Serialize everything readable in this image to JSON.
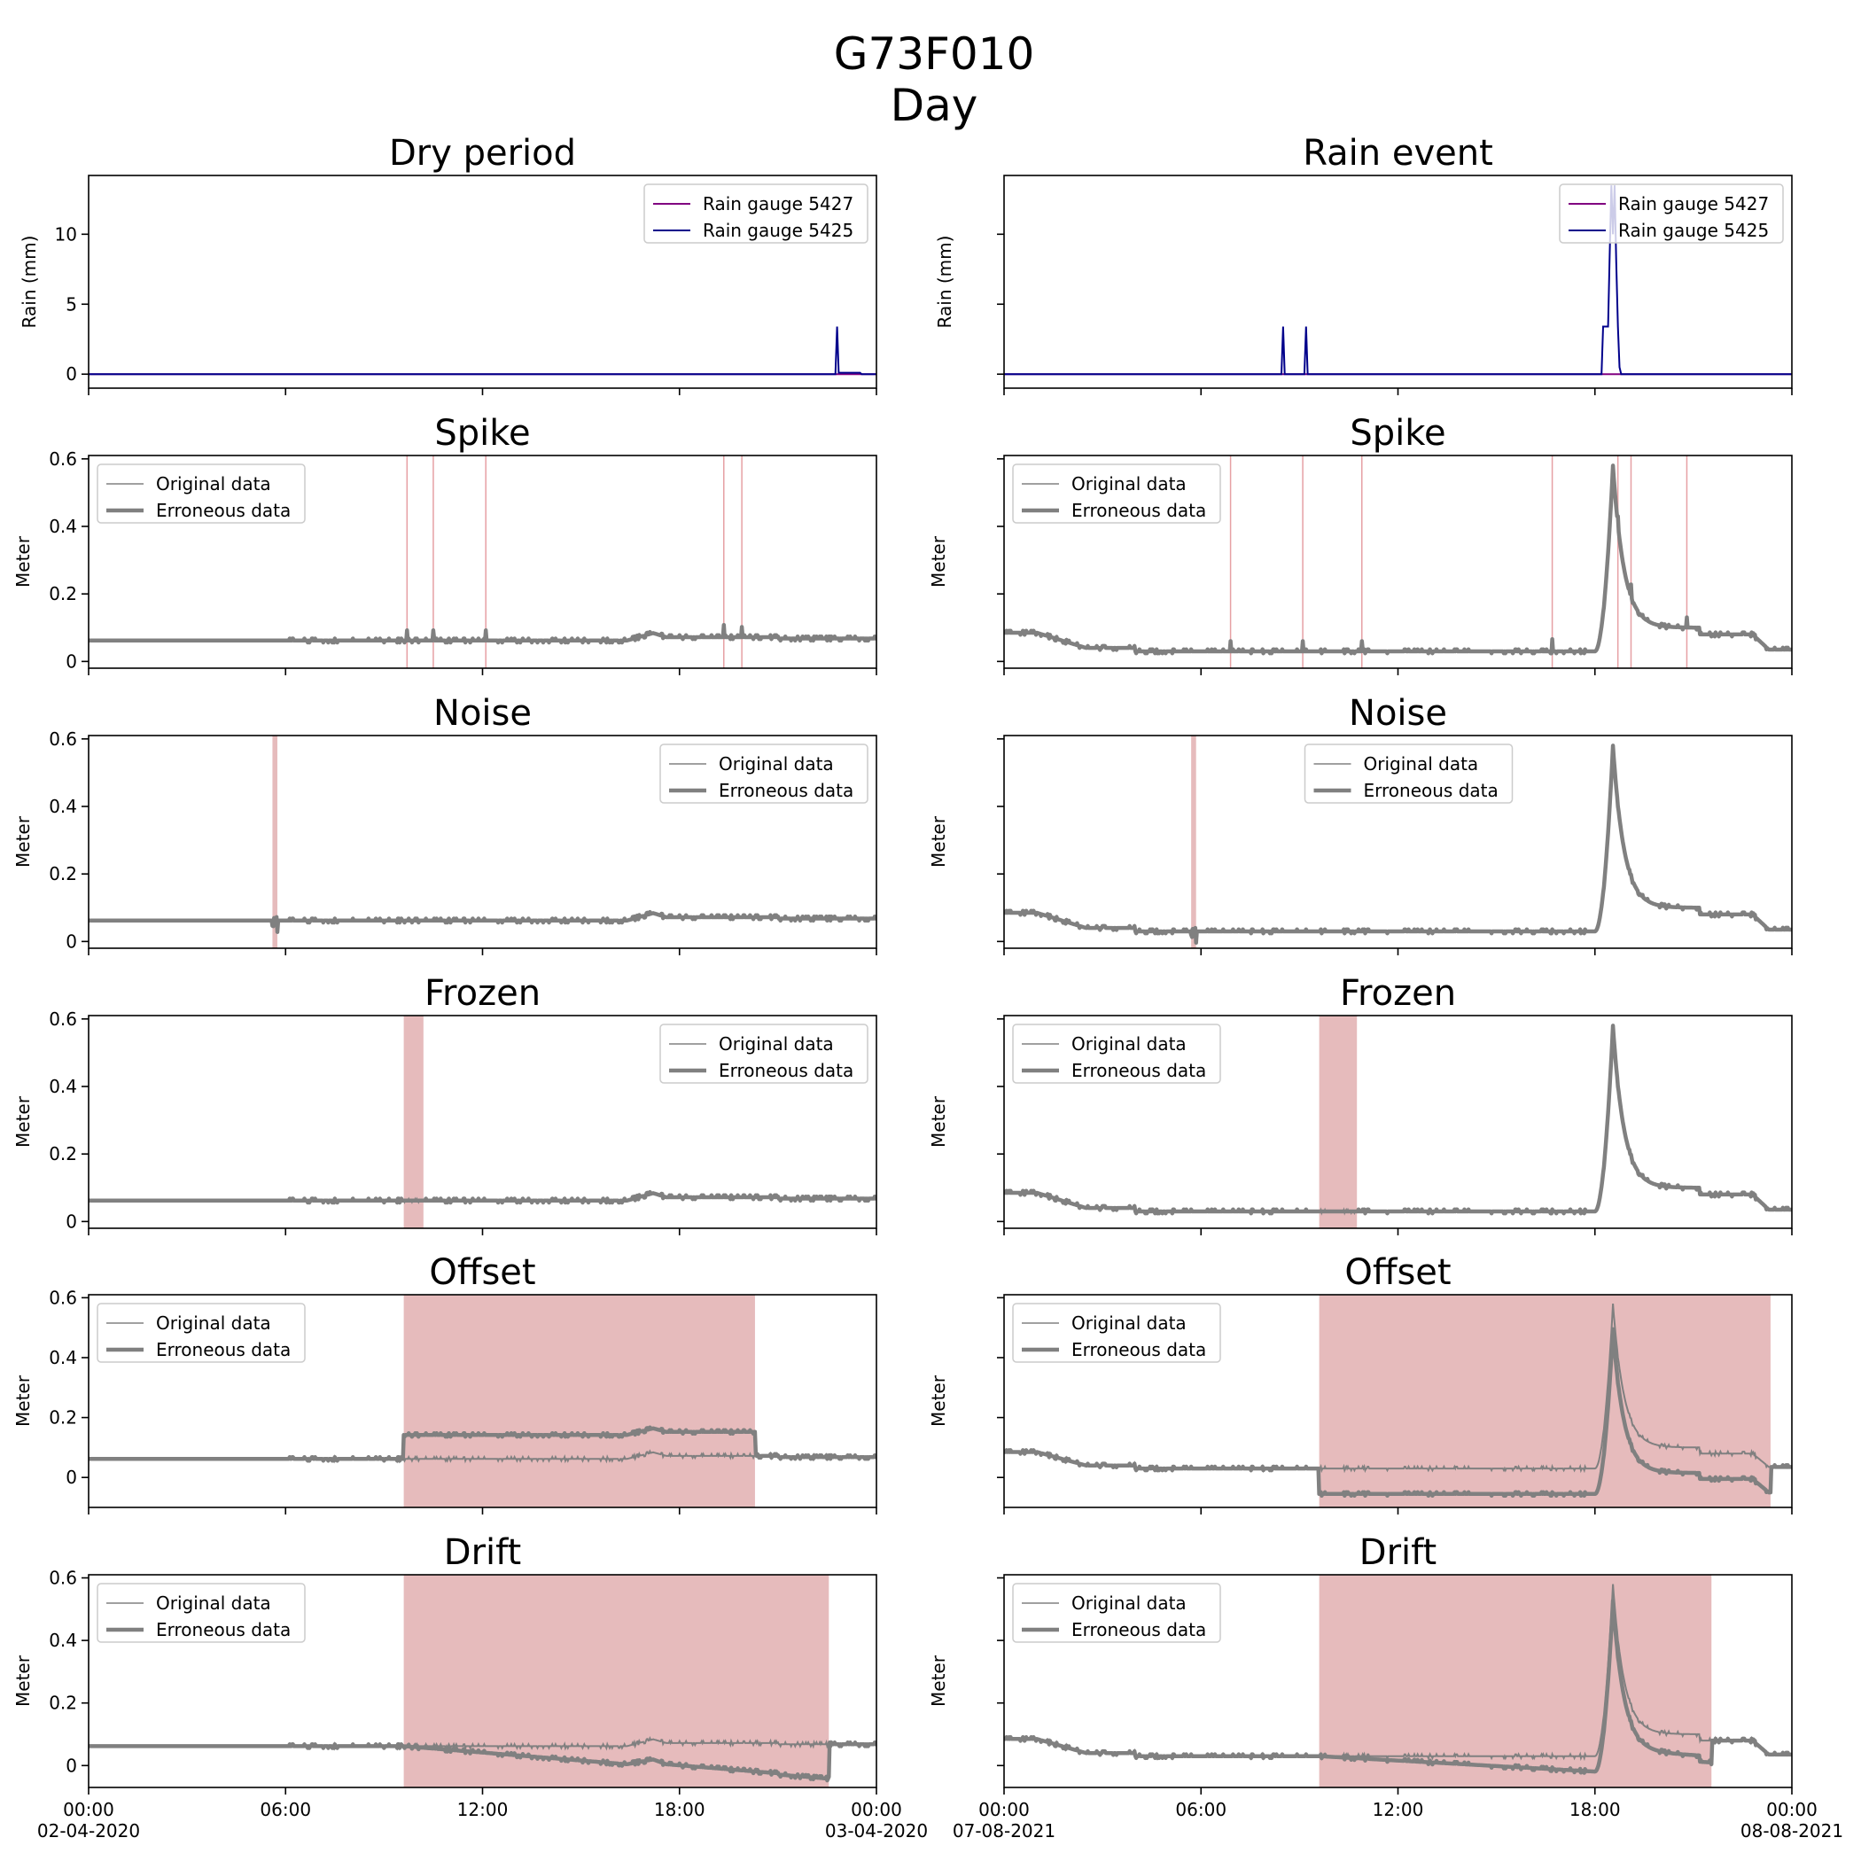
{
  "figure": {
    "title_line1": "G73F010",
    "title_line2": "Day"
  },
  "columns": [
    {
      "title": "Dry period",
      "start_label": "02-04-2020",
      "end_label": "03-04-2020",
      "baseline": "dry"
    },
    {
      "title": "Rain event",
      "start_label": "07-08-2021",
      "end_label": "08-08-2021",
      "baseline": "rain"
    }
  ],
  "colors": {
    "data": "#808080",
    "highlight": "#e6bbbc",
    "highlight_line": "#e6a0a4",
    "gauge_5427": "#800080",
    "gauge_5425": "#00008b"
  },
  "chart_data": [
    {
      "type": "line",
      "panel": "rain",
      "title": "Dry period",
      "ylabel": "Rain (mm)",
      "ylim": [
        -1,
        14.2
      ],
      "yticks": [
        0,
        5,
        10
      ],
      "xlim_hours": [
        0,
        24
      ],
      "legend": "top-right",
      "series": [
        {
          "name": "Rain gauge 5427",
          "color": "#800080",
          "points": [
            [
              0,
              0
            ],
            [
              24,
              0
            ]
          ]
        },
        {
          "name": "Rain gauge 5425",
          "color": "#00008b",
          "points": [
            [
              0,
              0
            ],
            [
              22.75,
              0
            ],
            [
              22.8,
              3.4
            ],
            [
              22.85,
              0.1
            ],
            [
              23.5,
              0.1
            ],
            [
              23.55,
              0
            ],
            [
              24,
              0
            ]
          ]
        }
      ]
    },
    {
      "type": "line",
      "panel": "rain",
      "title": "Rain event",
      "ylabel": "Rain (mm)",
      "ylim": [
        -1,
        14.2
      ],
      "yticks": [
        0,
        5,
        10
      ],
      "xlim_hours": [
        0,
        24
      ],
      "legend": "top-right",
      "series": [
        {
          "name": "Rain gauge 5427",
          "color": "#800080",
          "points": [
            [
              0,
              0
            ],
            [
              24,
              0
            ]
          ]
        },
        {
          "name": "Rain gauge 5425",
          "color": "#00008b",
          "points": [
            [
              0,
              0
            ],
            [
              8.45,
              0
            ],
            [
              8.5,
              3.4
            ],
            [
              8.55,
              0
            ],
            [
              9.15,
              0
            ],
            [
              9.2,
              3.4
            ],
            [
              9.25,
              0
            ],
            [
              18.2,
              0
            ],
            [
              18.25,
              3.4
            ],
            [
              18.4,
              3.4
            ],
            [
              18.45,
              8.5
            ],
            [
              18.5,
              13.5
            ],
            [
              18.55,
              10
            ],
            [
              18.6,
              13.5
            ],
            [
              18.65,
              8
            ],
            [
              18.7,
              3.4
            ],
            [
              18.75,
              0.5
            ],
            [
              18.8,
              0
            ],
            [
              24,
              0
            ]
          ]
        }
      ]
    },
    {
      "type": "line",
      "title": "Spike",
      "ylabel": "Meter",
      "ylim": [
        -0.02,
        0.61
      ],
      "yticks": [
        0,
        0.2,
        0.4,
        0.6
      ],
      "legend": "top-left",
      "baseline": "dry",
      "anomaly": "spike",
      "spike_hours": [
        9.7,
        10.5,
        12.1,
        19.35,
        19.9
      ],
      "series_names": [
        "Original data",
        "Erroneous data"
      ]
    },
    {
      "type": "line",
      "title": "Spike",
      "ylabel": "Meter",
      "ylim": [
        -0.02,
        0.61
      ],
      "yticks": [
        0,
        0.2,
        0.4,
        0.6
      ],
      "legend": "top-left",
      "baseline": "rain",
      "anomaly": "spike",
      "spike_hours": [
        6.9,
        9.1,
        10.9,
        16.7,
        18.7,
        19.1,
        20.8
      ],
      "series_names": [
        "Original data",
        "Erroneous data"
      ]
    },
    {
      "type": "line",
      "title": "Noise",
      "ylabel": "Meter",
      "ylim": [
        -0.02,
        0.61
      ],
      "yticks": [
        0,
        0.2,
        0.4,
        0.6
      ],
      "legend": "top-right",
      "baseline": "dry",
      "anomaly": "noise",
      "span_hours": [
        5.6,
        5.75
      ],
      "series_names": [
        "Original data",
        "Erroneous data"
      ]
    },
    {
      "type": "line",
      "title": "Noise",
      "ylabel": "Meter",
      "ylim": [
        -0.02,
        0.61
      ],
      "yticks": [
        0,
        0.2,
        0.4,
        0.6
      ],
      "legend": "top-center",
      "baseline": "rain",
      "anomaly": "noise",
      "span_hours": [
        5.7,
        5.85
      ],
      "series_names": [
        "Original data",
        "Erroneous data"
      ]
    },
    {
      "type": "line",
      "title": "Frozen",
      "ylabel": "Meter",
      "ylim": [
        -0.02,
        0.61
      ],
      "yticks": [
        0,
        0.2,
        0.4,
        0.6
      ],
      "legend": "top-right",
      "baseline": "dry",
      "anomaly": "frozen",
      "span_hours": [
        9.6,
        10.2
      ],
      "series_names": [
        "Original data",
        "Erroneous data"
      ]
    },
    {
      "type": "line",
      "title": "Frozen",
      "ylabel": "Meter",
      "ylim": [
        -0.02,
        0.61
      ],
      "yticks": [
        0,
        0.2,
        0.4,
        0.6
      ],
      "legend": "top-left",
      "baseline": "rain",
      "anomaly": "frozen",
      "span_hours": [
        9.6,
        10.75
      ],
      "series_names": [
        "Original data",
        "Erroneous data"
      ]
    },
    {
      "type": "line",
      "title": "Offset",
      "ylabel": "Meter",
      "ylim": [
        -0.1,
        0.61
      ],
      "yticks": [
        0,
        0.2,
        0.4,
        0.6
      ],
      "legend": "top-left",
      "baseline": "dry",
      "anomaly": "offset",
      "span_hours": [
        9.6,
        20.3
      ],
      "offset": 0.08,
      "series_names": [
        "Original data",
        "Erroneous data"
      ]
    },
    {
      "type": "line",
      "title": "Offset",
      "ylabel": "Meter",
      "ylim": [
        -0.1,
        0.61
      ],
      "yticks": [
        0,
        0.2,
        0.4,
        0.6
      ],
      "legend": "top-left",
      "baseline": "rain",
      "anomaly": "offset",
      "span_hours": [
        9.6,
        23.35
      ],
      "offset": -0.085,
      "series_names": [
        "Original data",
        "Erroneous data"
      ]
    },
    {
      "type": "line",
      "title": "Drift",
      "ylabel": "Meter",
      "ylim": [
        -0.07,
        0.61
      ],
      "yticks": [
        0,
        0.2,
        0.4,
        0.6
      ],
      "legend": "top-left",
      "baseline": "dry",
      "anomaly": "drift",
      "span_hours": [
        9.6,
        22.55
      ],
      "drift_end": -0.11,
      "series_names": [
        "Original data",
        "Erroneous data"
      ]
    },
    {
      "type": "line",
      "title": "Drift",
      "ylabel": "Meter",
      "ylim": [
        -0.07,
        0.61
      ],
      "yticks": [
        0,
        0.2,
        0.4,
        0.6
      ],
      "legend": "top-left",
      "baseline": "rain",
      "anomaly": "drift",
      "span_hours": [
        9.6,
        21.55
      ],
      "drift_end": -0.07,
      "series_names": [
        "Original data",
        "Erroneous data"
      ]
    }
  ],
  "xaxis": {
    "tick_labels": [
      "00:00",
      "06:00",
      "12:00",
      "18:00",
      "00:00"
    ],
    "tick_hours": [
      0,
      6,
      12,
      18,
      24
    ]
  },
  "legend_labels": {
    "original": "Original data",
    "erroneous": "Erroneous data"
  }
}
